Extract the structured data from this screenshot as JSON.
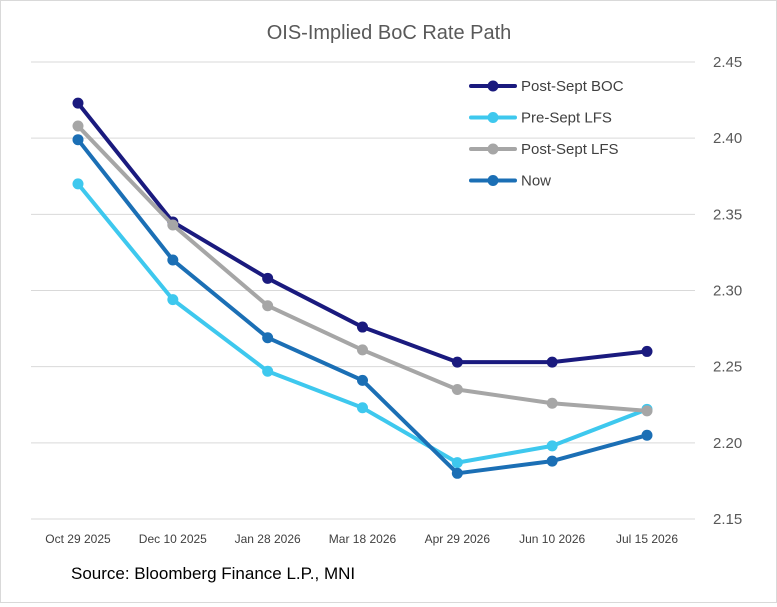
{
  "chart_data": {
    "type": "line",
    "title": "OIS-Implied BoC Rate Path",
    "source": "Source: Bloomberg Finance L.P., MNI",
    "categories": [
      "Oct 29 2025",
      "Dec 10 2025",
      "Jan 28 2026",
      "Mar 18 2026",
      "Apr 29 2026",
      "Jun 10 2026",
      "Jul 15 2026"
    ],
    "ylim": [
      2.15,
      2.45
    ],
    "yticks": [
      "2.45",
      "2.40",
      "2.35",
      "2.30",
      "2.25",
      "2.20",
      "2.15"
    ],
    "grid": true,
    "y_axis_side": "right",
    "legend_position": "top-right",
    "series": [
      {
        "name": "Post-Sept BOC",
        "color": "#1a1a7e",
        "values": [
          2.423,
          2.345,
          2.308,
          2.276,
          2.253,
          2.253,
          2.26
        ]
      },
      {
        "name": "Pre-Sept LFS",
        "color": "#3ec8ee",
        "values": [
          2.37,
          2.294,
          2.247,
          2.223,
          2.187,
          2.198,
          2.222
        ]
      },
      {
        "name": "Post-Sept LFS",
        "color": "#a6a6a6",
        "values": [
          2.408,
          2.343,
          2.29,
          2.261,
          2.235,
          2.226,
          2.221
        ]
      },
      {
        "name": "Now",
        "color": "#1b6fb5",
        "values": [
          2.399,
          2.32,
          2.269,
          2.241,
          2.18,
          2.188,
          2.205
        ]
      }
    ]
  }
}
